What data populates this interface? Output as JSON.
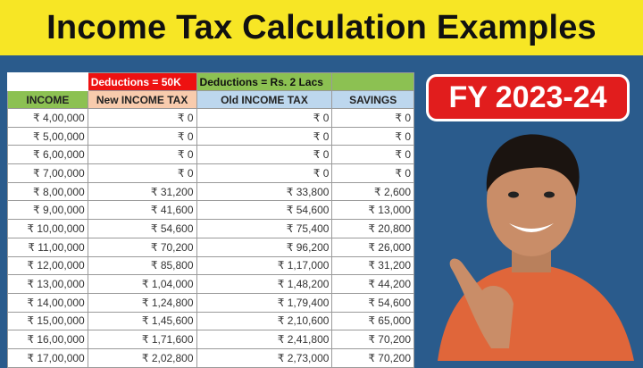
{
  "title": "Income Tax Calculation Examples",
  "badge": "FY 2023-24",
  "table": {
    "group_headers": [
      "",
      "Deductions = 50K",
      "Deductions = Rs. 2 Lacs",
      ""
    ],
    "columns": [
      "INCOME",
      "New INCOME TAX",
      "Old INCOME TAX",
      "SAVINGS"
    ],
    "rows": [
      [
        "₹ 4,00,000",
        "₹ 0",
        "₹ 0",
        "₹ 0"
      ],
      [
        "₹ 5,00,000",
        "₹ 0",
        "₹ 0",
        "₹ 0"
      ],
      [
        "₹ 6,00,000",
        "₹ 0",
        "₹ 0",
        "₹ 0"
      ],
      [
        "₹ 7,00,000",
        "₹ 0",
        "₹ 0",
        "₹ 0"
      ],
      [
        "₹ 8,00,000",
        "₹ 31,200",
        "₹ 33,800",
        "₹ 2,600"
      ],
      [
        "₹ 9,00,000",
        "₹ 41,600",
        "₹ 54,600",
        "₹ 13,000"
      ],
      [
        "₹ 10,00,000",
        "₹ 54,600",
        "₹ 75,400",
        "₹ 20,800"
      ],
      [
        "₹ 11,00,000",
        "₹ 70,200",
        "₹ 96,200",
        "₹ 26,000"
      ],
      [
        "₹ 12,00,000",
        "₹ 85,800",
        "₹ 1,17,000",
        "₹ 31,200"
      ],
      [
        "₹ 13,00,000",
        "₹ 1,04,000",
        "₹ 1,48,200",
        "₹ 44,200"
      ],
      [
        "₹ 14,00,000",
        "₹ 1,24,800",
        "₹ 1,79,400",
        "₹ 54,600"
      ],
      [
        "₹ 15,00,000",
        "₹ 1,45,600",
        "₹ 2,10,600",
        "₹ 65,000"
      ],
      [
        "₹ 16,00,000",
        "₹ 1,71,600",
        "₹ 2,41,800",
        "₹ 70,200"
      ],
      [
        "₹ 17,00,000",
        "₹ 2,02,800",
        "₹ 2,73,000",
        "₹ 70,200"
      ]
    ]
  },
  "colors": {
    "title_bg": "#f7e625",
    "background": "#2a5b8c",
    "badge": "#e11d1d",
    "green": "#8cc152",
    "red": "#ee1111",
    "peach": "#f8cbad",
    "light_blue": "#bdd7ee"
  }
}
